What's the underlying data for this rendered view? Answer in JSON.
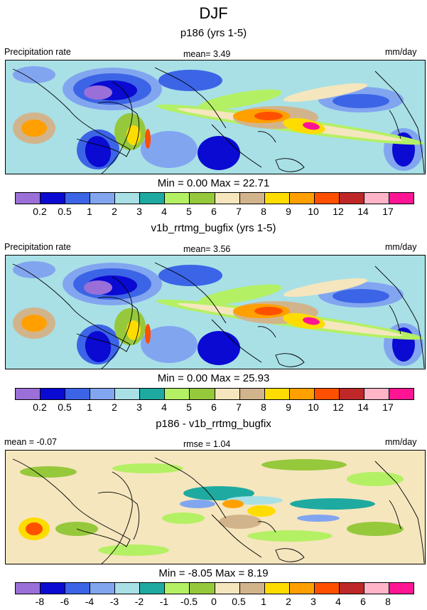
{
  "title": "DJF",
  "panels": [
    {
      "subtitle": "p186 (yrs 1-5)",
      "left_label": "Precipitation rate",
      "center_label": "mean=   3.49",
      "right_label": "mm/day",
      "minmax": "Min =   0.00 Max =  22.71",
      "ticks": [
        "0.2",
        "0.5",
        "1",
        "2",
        "3",
        "4",
        "5",
        "6",
        "7",
        "8",
        "9",
        "10",
        "12",
        "14",
        "17"
      ]
    },
    {
      "subtitle": "v1b_rrtmg_bugfix (yrs 1-5)",
      "left_label": "Precipitation rate",
      "center_label": "mean=   3.56",
      "right_label": "mm/day",
      "minmax": "Min =   0.00 Max =  25.93",
      "ticks": [
        "0.2",
        "0.5",
        "1",
        "2",
        "3",
        "4",
        "5",
        "6",
        "7",
        "8",
        "9",
        "10",
        "12",
        "14",
        "17"
      ]
    },
    {
      "subtitle": "p186 - v1b_rrtmg_bugfix",
      "left_label": "mean =  -0.07",
      "center_label": "rmse =   1.04",
      "right_label": "mm/day",
      "minmax": "Min =  -8.05 Max =   8.19",
      "ticks": [
        "-8",
        "-6",
        "-4",
        "-3",
        "-2",
        "-1",
        "-0.5",
        "0",
        "0.5",
        "1",
        "2",
        "3",
        "4",
        "6",
        "8"
      ]
    }
  ],
  "colors": {
    "palette": [
      "#9a6fd8",
      "#0a0ad2",
      "#3c64e6",
      "#82a5f0",
      "#a8e0e6",
      "#1eaaa0",
      "#b4f064",
      "#96c83c",
      "#f5e6be",
      "#d2b48c",
      "#ffdc00",
      "#ffa000",
      "#ff5000",
      "#be2828",
      "#ffb4c8",
      "#ff1493"
    ]
  },
  "chart_data": [
    {
      "type": "heatmap",
      "title": "p186 (yrs 1-5)",
      "variable": "Precipitation rate",
      "units": "mm/day",
      "mean": 3.49,
      "min": 0.0,
      "max": 22.71,
      "levels": [
        0.2,
        0.5,
        1,
        2,
        3,
        4,
        5,
        6,
        7,
        8,
        9,
        10,
        12,
        14,
        17
      ]
    },
    {
      "type": "heatmap",
      "title": "v1b_rrtmg_bugfix (yrs 1-5)",
      "variable": "Precipitation rate",
      "units": "mm/day",
      "mean": 3.56,
      "min": 0.0,
      "max": 25.93,
      "levels": [
        0.2,
        0.5,
        1,
        2,
        3,
        4,
        5,
        6,
        7,
        8,
        9,
        10,
        12,
        14,
        17
      ]
    },
    {
      "type": "heatmap",
      "title": "p186 - v1b_rrtmg_bugfix",
      "units": "mm/day",
      "mean": -0.07,
      "rmse": 1.04,
      "min": -8.05,
      "max": 8.19,
      "levels": [
        -8,
        -6,
        -4,
        -3,
        -2,
        -1,
        -0.5,
        0,
        0.5,
        1,
        2,
        3,
        4,
        6,
        8
      ]
    }
  ]
}
